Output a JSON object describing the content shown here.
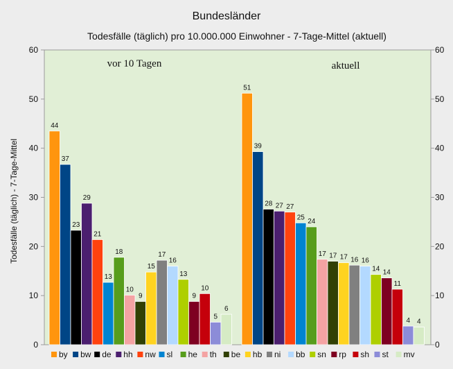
{
  "chart_data": {
    "type": "bar",
    "title": "Bundesländer",
    "subtitle": "Todesfälle (täglich) pro 10.000.000 Einwohner - 7-Tage-Mittel (aktuell)",
    "ylabel": "Todesfälle (täglich) - 7-Tage-Mittel",
    "ylim": [
      0,
      60
    ],
    "yticks": [
      0,
      10,
      20,
      30,
      40,
      50,
      60
    ],
    "grid": false,
    "legend_position": "bottom",
    "annotations": [
      "vor 10 Tagen",
      "aktuell"
    ],
    "colors": {
      "by": "#ff950e",
      "bw": "#004586",
      "de": "#000000",
      "hh": "#4b1f6f",
      "nw": "#ff420e",
      "sl": "#0084d1",
      "he": "#579d1c",
      "th": "#f4a3a3",
      "be": "#314004",
      "hb": "#ffd320",
      "ni": "#808080",
      "bb": "#b3d9ff",
      "sn": "#aecf00",
      "rp": "#7e0021",
      "sh": "#c5000b",
      "st": "#8c8cd8",
      "mv": "#d6ebc5"
    },
    "groups": [
      {
        "name": "vor 10 Tagen",
        "bars": [
          {
            "label": "by",
            "value": 43.5,
            "display": "44"
          },
          {
            "label": "bw",
            "value": 36.7,
            "display": "37"
          },
          {
            "label": "de",
            "value": 23.3,
            "display": "23"
          },
          {
            "label": "hh",
            "value": 28.8,
            "display": "29"
          },
          {
            "label": "nw",
            "value": 21.4,
            "display": "21"
          },
          {
            "label": "sl",
            "value": 12.7,
            "display": "13"
          },
          {
            "label": "he",
            "value": 17.8,
            "display": "18"
          },
          {
            "label": "th",
            "value": 10.1,
            "display": "10"
          },
          {
            "label": "be",
            "value": 8.8,
            "display": "9"
          },
          {
            "label": "hb",
            "value": 14.8,
            "display": "15"
          },
          {
            "label": "ni",
            "value": 17.2,
            "display": "17"
          },
          {
            "label": "bb",
            "value": 16.0,
            "display": "16"
          },
          {
            "label": "sn",
            "value": 13.3,
            "display": "13"
          },
          {
            "label": "rp",
            "value": 8.8,
            "display": "9"
          },
          {
            "label": "sh",
            "value": 10.4,
            "display": "10"
          },
          {
            "label": "st",
            "value": 4.6,
            "display": "5"
          },
          {
            "label": "mv",
            "value": 6.2,
            "display": "6"
          }
        ]
      },
      {
        "name": "aktuell",
        "bars": [
          {
            "label": "by",
            "value": 51.2,
            "display": "51"
          },
          {
            "label": "bw",
            "value": 39.3,
            "display": "39"
          },
          {
            "label": "de",
            "value": 27.6,
            "display": "28"
          },
          {
            "label": "hh",
            "value": 27.2,
            "display": "27"
          },
          {
            "label": "nw",
            "value": 27.0,
            "display": "27"
          },
          {
            "label": "sl",
            "value": 24.8,
            "display": "25"
          },
          {
            "label": "he",
            "value": 24.0,
            "display": "24"
          },
          {
            "label": "th",
            "value": 17.4,
            "display": "17"
          },
          {
            "label": "be",
            "value": 17.0,
            "display": "17"
          },
          {
            "label": "hb",
            "value": 16.7,
            "display": "17"
          },
          {
            "label": "ni",
            "value": 16.2,
            "display": "16"
          },
          {
            "label": "bb",
            "value": 16.0,
            "display": "16"
          },
          {
            "label": "sn",
            "value": 14.3,
            "display": "14"
          },
          {
            "label": "rp",
            "value": 13.6,
            "display": "14"
          },
          {
            "label": "sh",
            "value": 11.3,
            "display": "11"
          },
          {
            "label": "st",
            "value": 3.8,
            "display": "4"
          },
          {
            "label": "mv",
            "value": 3.6,
            "display": "4"
          }
        ]
      }
    ],
    "legend": [
      "by",
      "bw",
      "de",
      "hh",
      "nw",
      "sl",
      "he",
      "th",
      "be",
      "hb",
      "ni",
      "bb",
      "sn",
      "rp",
      "sh",
      "st",
      "mv"
    ]
  }
}
